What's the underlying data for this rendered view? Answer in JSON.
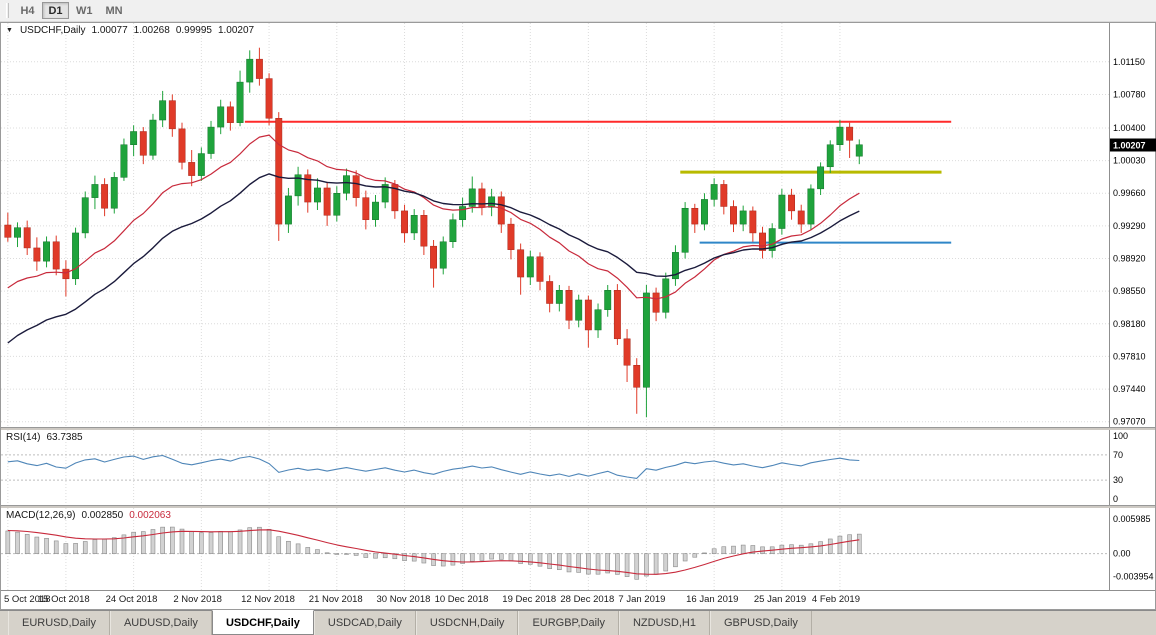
{
  "toolbar": {
    "timeframes": [
      {
        "label": "H4",
        "active": false
      },
      {
        "label": "D1",
        "active": true
      },
      {
        "label": "W1",
        "active": false
      },
      {
        "label": "MN",
        "active": false
      }
    ]
  },
  "chart_header": {
    "symbol": "USDCHF,Daily",
    "open": "1.00077",
    "high": "1.00268",
    "low": "0.99995",
    "close": "1.00207"
  },
  "chart_data": {
    "type": "candlestick",
    "symbol": "USDCHF",
    "timeframe": "Daily",
    "total_slots": 114,
    "price_range": {
      "max": 1.0159,
      "min": 0.9701
    },
    "price_axis_ticks": [
      "1.01150",
      "1.00780",
      "1.00400",
      "1.00030",
      "0.99660",
      "0.99290",
      "0.98920",
      "0.98550",
      "0.98180",
      "0.97810",
      "0.97440",
      "0.97070"
    ],
    "current_price": "1.00207",
    "colors": {
      "up": "#1fa33c",
      "down": "#e03a28",
      "up_border": "#12742a",
      "down_border": "#a8281b",
      "ma_fast": "#c82a3c",
      "ma_slow": "#1b1b3c",
      "rsi": "#4f86b8",
      "macd_bar_fill": "#d2d2d2",
      "macd_bar_stroke": "#8a8a8a",
      "macd_signal": "#c82a3c",
      "resistance": "#ff2a2a",
      "support_yellow": "#b8ba00",
      "support_blue": "#2f86c8"
    },
    "hlines": [
      {
        "price": 1.0047,
        "color": "#ff2a2a",
        "width": 2,
        "from_slot": 25,
        "to_slot": 98,
        "name": "resistance-line-red"
      },
      {
        "price": 0.999,
        "color": "#b8ba00",
        "width": 3,
        "from_slot": 70,
        "to_slot": 97,
        "name": "support-line-yellow"
      },
      {
        "price": 0.991,
        "color": "#2f86c8",
        "width": 2,
        "from_slot": 72,
        "to_slot": 98,
        "name": "support-line-blue"
      }
    ],
    "ma_fast": {
      "period": 18,
      "seed": 0.9852
    },
    "ma_slow": {
      "period": 30,
      "seed": 0.9788
    },
    "candles": [
      [
        0.993,
        0.9944,
        0.9911,
        0.9916
      ],
      [
        0.9916,
        0.9933,
        0.9905,
        0.9927
      ],
      [
        0.9927,
        0.9935,
        0.9896,
        0.9904
      ],
      [
        0.9904,
        0.9916,
        0.9878,
        0.9889
      ],
      [
        0.9889,
        0.9917,
        0.9882,
        0.9911
      ],
      [
        0.9911,
        0.9918,
        0.9873,
        0.988
      ],
      [
        0.988,
        0.989,
        0.9849,
        0.9869
      ],
      [
        0.9869,
        0.9927,
        0.9862,
        0.9921
      ],
      [
        0.9921,
        0.9968,
        0.9915,
        0.9961
      ],
      [
        0.9961,
        0.9986,
        0.9948,
        0.9976
      ],
      [
        0.9976,
        0.9983,
        0.994,
        0.9949
      ],
      [
        0.9949,
        0.999,
        0.9943,
        0.9984
      ],
      [
        0.9984,
        1.0028,
        0.998,
        1.0021
      ],
      [
        1.0021,
        1.0043,
        1.0008,
        1.0036
      ],
      [
        1.0036,
        1.0041,
        0.9999,
        1.0009
      ],
      [
        1.0009,
        1.0056,
        1.0004,
        1.0049
      ],
      [
        1.0049,
        1.0082,
        1.0041,
        1.0071
      ],
      [
        1.0071,
        1.0078,
        1.003,
        1.0039
      ],
      [
        1.0039,
        1.0046,
        0.9993,
        1.0001
      ],
      [
        1.0001,
        1.0015,
        0.9974,
        0.9986
      ],
      [
        0.9986,
        1.0018,
        0.998,
        1.0011
      ],
      [
        1.0011,
        1.0048,
        1.0005,
        1.0041
      ],
      [
        1.0041,
        1.0072,
        1.0033,
        1.0064
      ],
      [
        1.0064,
        1.007,
        1.0037,
        1.0046
      ],
      [
        1.0046,
        1.0105,
        1.0042,
        1.0092
      ],
      [
        1.0092,
        1.0128,
        1.008,
        1.0118
      ],
      [
        1.0118,
        1.0131,
        1.0088,
        1.0096
      ],
      [
        1.0096,
        1.0102,
        1.0043,
        1.0051
      ],
      [
        1.0051,
        1.0058,
        0.9912,
        0.9931
      ],
      [
        0.9931,
        0.9972,
        0.9921,
        0.9963
      ],
      [
        0.9963,
        0.9996,
        0.9952,
        0.9987
      ],
      [
        0.9987,
        0.9993,
        0.9944,
        0.9956
      ],
      [
        0.9956,
        0.9983,
        0.9947,
        0.9972
      ],
      [
        0.9972,
        0.9979,
        0.9929,
        0.9941
      ],
      [
        0.9941,
        0.9974,
        0.9934,
        0.9966
      ],
      [
        0.9966,
        0.9994,
        0.9958,
        0.9986
      ],
      [
        0.9986,
        0.9992,
        0.9951,
        0.9961
      ],
      [
        0.9961,
        0.9969,
        0.9925,
        0.9936
      ],
      [
        0.9936,
        0.9964,
        0.9928,
        0.9956
      ],
      [
        0.9956,
        0.9984,
        0.9949,
        0.9976
      ],
      [
        0.9976,
        0.9981,
        0.9937,
        0.9946
      ],
      [
        0.9946,
        0.9953,
        0.991,
        0.9921
      ],
      [
        0.9921,
        0.9948,
        0.9913,
        0.9941
      ],
      [
        0.9941,
        0.9947,
        0.9896,
        0.9906
      ],
      [
        0.9906,
        0.9913,
        0.9859,
        0.9881
      ],
      [
        0.9881,
        0.9917,
        0.9874,
        0.9911
      ],
      [
        0.9911,
        0.9943,
        0.9904,
        0.9936
      ],
      [
        0.9936,
        0.9961,
        0.9928,
        0.9951
      ],
      [
        0.9951,
        0.9985,
        0.9944,
        0.9971
      ],
      [
        0.9971,
        0.9978,
        0.9941,
        0.995
      ],
      [
        0.995,
        0.9971,
        0.994,
        0.9962
      ],
      [
        0.9962,
        0.9968,
        0.9921,
        0.9931
      ],
      [
        0.9931,
        0.9938,
        0.9891,
        0.9902
      ],
      [
        0.9902,
        0.9909,
        0.9851,
        0.9871
      ],
      [
        0.9871,
        0.9901,
        0.9862,
        0.9894
      ],
      [
        0.9894,
        0.9899,
        0.9856,
        0.9866
      ],
      [
        0.9866,
        0.9873,
        0.9831,
        0.9841
      ],
      [
        0.9841,
        0.9862,
        0.9832,
        0.9856
      ],
      [
        0.9856,
        0.9861,
        0.9812,
        0.9822
      ],
      [
        0.9822,
        0.9851,
        0.9814,
        0.9845
      ],
      [
        0.9845,
        0.985,
        0.9791,
        0.9811
      ],
      [
        0.9811,
        0.9841,
        0.9802,
        0.9834
      ],
      [
        0.9834,
        0.9862,
        0.9826,
        0.9856
      ],
      [
        0.9856,
        0.9863,
        0.9794,
        0.9801
      ],
      [
        0.9801,
        0.9812,
        0.9752,
        0.9771
      ],
      [
        0.9771,
        0.9779,
        0.9716,
        0.9746
      ],
      [
        0.9746,
        0.9862,
        0.9712,
        0.9853
      ],
      [
        0.9853,
        0.9859,
        0.9821,
        0.9831
      ],
      [
        0.9831,
        0.9876,
        0.9824,
        0.9869
      ],
      [
        0.9869,
        0.9907,
        0.9861,
        0.9899
      ],
      [
        0.9899,
        0.9956,
        0.9892,
        0.9949
      ],
      [
        0.9949,
        0.9954,
        0.9921,
        0.9931
      ],
      [
        0.9931,
        0.9966,
        0.9924,
        0.9959
      ],
      [
        0.9959,
        0.9983,
        0.9951,
        0.9976
      ],
      [
        0.9976,
        0.9981,
        0.9942,
        0.9951
      ],
      [
        0.9951,
        0.9958,
        0.9922,
        0.9931
      ],
      [
        0.9931,
        0.9952,
        0.9923,
        0.9946
      ],
      [
        0.9946,
        0.9951,
        0.9911,
        0.9921
      ],
      [
        0.9921,
        0.9928,
        0.9892,
        0.9901
      ],
      [
        0.9901,
        0.9932,
        0.9893,
        0.9926
      ],
      [
        0.9926,
        0.9971,
        0.9919,
        0.9964
      ],
      [
        0.9964,
        0.9971,
        0.9936,
        0.9946
      ],
      [
        0.9946,
        0.9953,
        0.9921,
        0.9931
      ],
      [
        0.9931,
        0.9976,
        0.9924,
        0.9971
      ],
      [
        0.9971,
        1.0001,
        0.9964,
        0.9996
      ],
      [
        0.9996,
        1.0026,
        0.9989,
        1.0021
      ],
      [
        1.0021,
        1.0049,
        1.0014,
        1.0041
      ],
      [
        1.0041,
        1.0046,
        1.0006,
        1.0026
      ],
      [
        1.0008,
        1.0027,
        0.9999,
        1.0021
      ]
    ],
    "date_labels": [
      {
        "text": "5 Oct 2018",
        "slot": 0
      },
      {
        "text": "15 Oct 2018",
        "slot": 6
      },
      {
        "text": "24 Oct 2018",
        "slot": 13
      },
      {
        "text": "2 Nov 2018",
        "slot": 20
      },
      {
        "text": "12 Nov 2018",
        "slot": 27
      },
      {
        "text": "21 Nov 2018",
        "slot": 34
      },
      {
        "text": "30 Nov 2018",
        "slot": 41
      },
      {
        "text": "10 Dec 2018",
        "slot": 47
      },
      {
        "text": "19 Dec 2018",
        "slot": 54
      },
      {
        "text": "28 Dec 2018",
        "slot": 60
      },
      {
        "text": "7 Jan 2019",
        "slot": 66
      },
      {
        "text": "16 Jan 2019",
        "slot": 73
      },
      {
        "text": "25 Jan 2019",
        "slot": 80
      },
      {
        "text": "4 Feb 2019",
        "slot": 86
      }
    ],
    "rsi": {
      "name": "RSI(14)",
      "value": "63.7385",
      "period": 14,
      "seed_gain": 0.0013,
      "seed_loss": 0.0009,
      "ticks": [
        {
          "label": "100",
          "value": 100
        },
        {
          "label": "70",
          "value": 70
        },
        {
          "label": "30",
          "value": 30
        },
        {
          "label": "0",
          "value": 0
        }
      ],
      "dotted_levels": [
        70,
        30
      ]
    },
    "macd": {
      "name": "MACD(12,26,9)",
      "macd_value": "0.002850",
      "signal_value": "0.002063",
      "fast": 12,
      "slow": 26,
      "signal": 9,
      "seed_offset": 0.0042,
      "signal_seed": 0.004,
      "range": {
        "max": 0.0068,
        "min": -0.0052
      },
      "ticks": [
        {
          "label": "0.005985",
          "value": 0.005985
        },
        {
          "label": "0.00",
          "value": 0
        },
        {
          "label": "-0.003954",
          "value": -0.003954
        }
      ]
    }
  },
  "bottom_tabs": [
    {
      "label": "EURUSD,Daily",
      "active": false
    },
    {
      "label": "AUDUSD,Daily",
      "active": false
    },
    {
      "label": "USDCHF,Daily",
      "active": true
    },
    {
      "label": "USDCAD,Daily",
      "active": false
    },
    {
      "label": "USDCNH,Daily",
      "active": false
    },
    {
      "label": "EURGBP,Daily",
      "active": false
    },
    {
      "label": "NZDUSD,H1",
      "active": false
    },
    {
      "label": "GBPUSD,Daily",
      "active": false
    }
  ]
}
